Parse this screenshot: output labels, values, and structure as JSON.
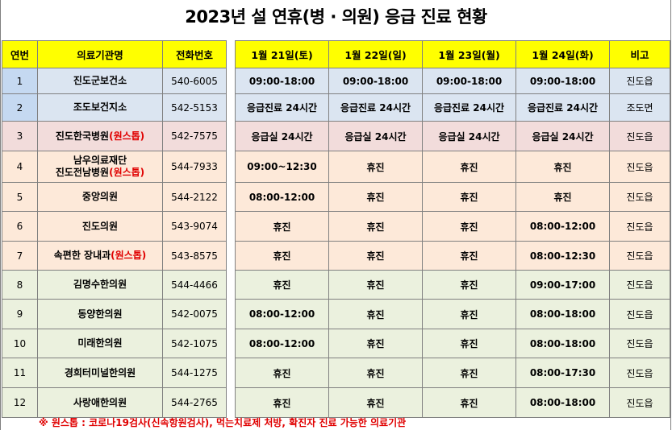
{
  "title": "2023년 설 연휴(병 · 의원) 응급 진료 현황",
  "headers": {
    "no": "연번",
    "name": "의료기관명",
    "phone": "전화번호",
    "d1": "1월 21일(토)",
    "d2": "1월 22일(일)",
    "d3": "1월 23일(월)",
    "d4": "1월 24일(화)",
    "note": "비고"
  },
  "colors": {
    "header": "#ffff00",
    "blue_row": "#dbe5f1",
    "pink_row": "#f2dcdb",
    "peach_row": "#fde9d9",
    "green_row": "#ebf1de",
    "blue_no": "#c5d9f1",
    "accent_red": "#e00000"
  },
  "rows": [
    {
      "no": "1",
      "name": "진도군보건소",
      "phone": "540-6005",
      "d1": "09:00-18:00",
      "d2": "09:00-18:00",
      "d3": "09:00-18:00",
      "d4": "09:00-18:00",
      "note": "진도읍"
    },
    {
      "no": "2",
      "name": "조도보건지소",
      "phone": "542-5153",
      "d1": "응급진료 24시간",
      "d2": "응급진료 24시간",
      "d3": "응급진료 24시간",
      "d4": "응급진료 24시간",
      "note": "조도면"
    },
    {
      "no": "3",
      "name": "진도한국병원",
      "tag": "(원스톱)",
      "phone": "542-7575",
      "d1": "응급실 24시간",
      "d2": "응급실 24시간",
      "d3": "응급실 24시간",
      "d4": "응급실 24시간",
      "note": "진도읍"
    },
    {
      "no": "4",
      "name_line1": "남우의료재단",
      "name": "진도전남병원",
      "tag": "(원스톱)",
      "phone": "544-7933",
      "d1": "09:00~12:30",
      "d2": "휴진",
      "d3": "휴진",
      "d4": "휴진",
      "note": "진도읍"
    },
    {
      "no": "5",
      "name": "중앙의원",
      "phone": "544-2122",
      "d1": "08:00-12:00",
      "d2": "휴진",
      "d3": "휴진",
      "d4": "휴진",
      "note": "진도읍"
    },
    {
      "no": "6",
      "name": "진도의원",
      "phone": "543-9074",
      "d1": "휴진",
      "d2": "휴진",
      "d3": "휴진",
      "d4": "08:00-12:00",
      "note": "진도읍"
    },
    {
      "no": "7",
      "name": "속편한 장내과",
      "tag": "(원스톱)",
      "phone": "543-8575",
      "d1": "휴진",
      "d2": "휴진",
      "d3": "휴진",
      "d4": "08:00-12:30",
      "note": "진도읍"
    },
    {
      "no": "8",
      "name": "김명수한의원",
      "phone": "544-4466",
      "d1": "휴진",
      "d2": "휴진",
      "d3": "휴진",
      "d4": "09:00-17:00",
      "note": "진도읍"
    },
    {
      "no": "9",
      "name": "동양한의원",
      "phone": "542-0075",
      "d1": "08:00-12:00",
      "d2": "휴진",
      "d3": "휴진",
      "d4": "08:00-18:00",
      "note": "진도읍"
    },
    {
      "no": "10",
      "name": "미래한의원",
      "phone": "542-1075",
      "d1": "08:00-12:00",
      "d2": "휴진",
      "d3": "휴진",
      "d4": "08:00-18:00",
      "note": "진도읍"
    },
    {
      "no": "11",
      "name": "경희터미널한의원",
      "phone": "544-1275",
      "d1": "휴진",
      "d2": "휴진",
      "d3": "휴진",
      "d4": "08:00-17:30",
      "note": "진도읍"
    },
    {
      "no": "12",
      "name": "사랑애한의원",
      "phone": "544-2765",
      "d1": "휴진",
      "d2": "휴진",
      "d3": "휴진",
      "d4": "08:00-18:00",
      "note": "진도읍"
    }
  ],
  "footnote": "※ 원스톱 : 코로나19검사(신속항원검사), 먹는치료제 처방, 확진자 진료 가능한 의료기관"
}
